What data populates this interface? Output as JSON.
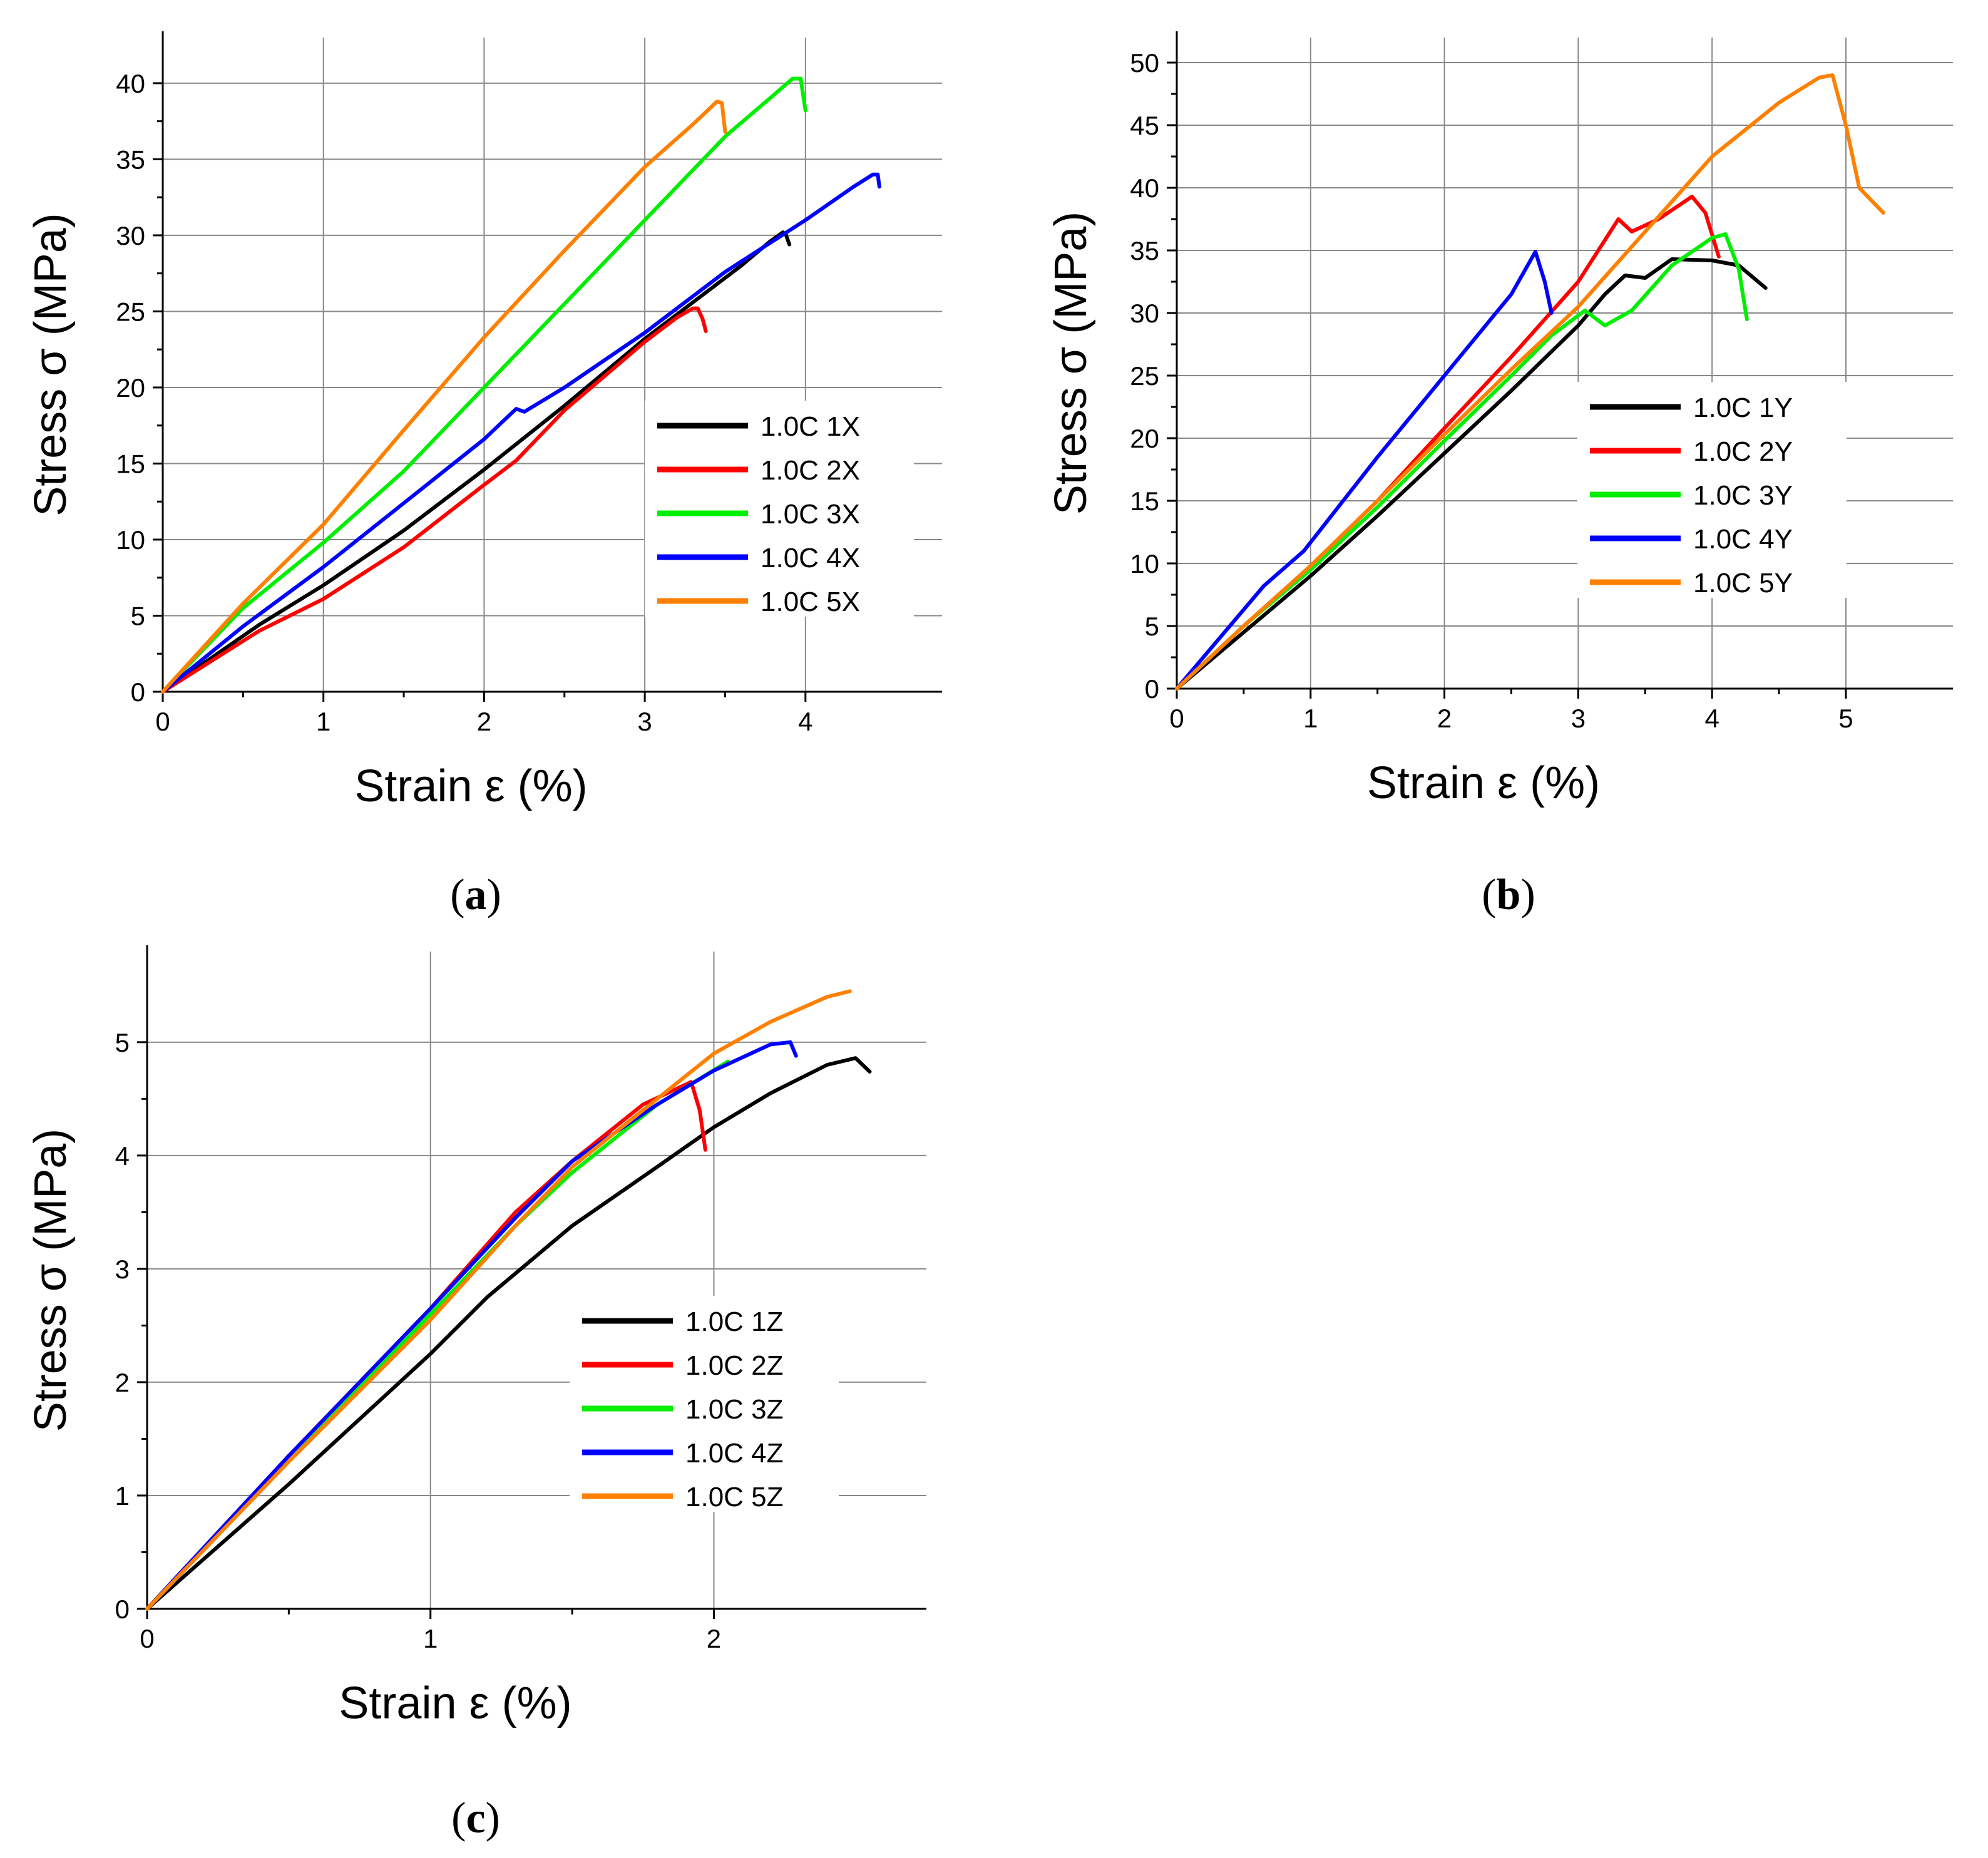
{
  "chart_data": [
    {
      "type": "line",
      "panel_label": "a",
      "xlabel": "Strain ε (%)",
      "ylabel": "Stress σ (MPa)",
      "xlim": [
        0,
        4.85
      ],
      "ylim": [
        0,
        43
      ],
      "xticks": [
        0,
        1,
        2,
        3,
        4
      ],
      "yticks": [
        0,
        5,
        10,
        15,
        20,
        25,
        30,
        35,
        40
      ],
      "grid": true,
      "legend_position": "bottom-right",
      "series": [
        {
          "name": "1.0C 1X",
          "color": "#000000",
          "points": [
            [
              0,
              0
            ],
            [
              0.3,
              2.2
            ],
            [
              0.6,
              4.4
            ],
            [
              1.0,
              7.0
            ],
            [
              1.5,
              10.6
            ],
            [
              2.0,
              14.6
            ],
            [
              2.5,
              18.8
            ],
            [
              3.0,
              23.2
            ],
            [
              3.3,
              25.6
            ],
            [
              3.6,
              28.0
            ],
            [
              3.78,
              29.6
            ],
            [
              3.86,
              30.2
            ],
            [
              3.88,
              30.0
            ],
            [
              3.9,
              29.4
            ]
          ]
        },
        {
          "name": "1.0C 2X",
          "color": "#ff0000",
          "points": [
            [
              0,
              0
            ],
            [
              0.3,
              2.0
            ],
            [
              0.6,
              4.0
            ],
            [
              1.0,
              6.1
            ],
            [
              1.5,
              9.5
            ],
            [
              2.0,
              13.6
            ],
            [
              2.2,
              15.2
            ],
            [
              2.5,
              18.5
            ],
            [
              3.0,
              23.0
            ],
            [
              3.2,
              24.6
            ],
            [
              3.3,
              25.2
            ],
            [
              3.33,
              25.2
            ],
            [
              3.36,
              24.5
            ],
            [
              3.38,
              23.7
            ]
          ]
        },
        {
          "name": "1.0C 3X",
          "color": "#00ee00",
          "points": [
            [
              0,
              0
            ],
            [
              0.5,
              5.5
            ],
            [
              1.0,
              9.8
            ],
            [
              1.5,
              14.5
            ],
            [
              2.0,
              20.0
            ],
            [
              2.5,
              25.5
            ],
            [
              3.0,
              31.0
            ],
            [
              3.5,
              36.5
            ],
            [
              3.8,
              39.2
            ],
            [
              3.92,
              40.3
            ],
            [
              3.97,
              40.3
            ],
            [
              4.0,
              38.2
            ]
          ]
        },
        {
          "name": "1.0C 4X",
          "color": "#0000ff",
          "points": [
            [
              0,
              0
            ],
            [
              0.5,
              4.3
            ],
            [
              1.0,
              8.2
            ],
            [
              1.5,
              12.4
            ],
            [
              2.0,
              16.6
            ],
            [
              2.2,
              18.6
            ],
            [
              2.25,
              18.4
            ],
            [
              2.5,
              20.0
            ],
            [
              3.0,
              23.6
            ],
            [
              3.5,
              27.6
            ],
            [
              4.0,
              31.0
            ],
            [
              4.3,
              33.2
            ],
            [
              4.42,
              34.0
            ],
            [
              4.45,
              34.0
            ],
            [
              4.46,
              33.2
            ]
          ]
        },
        {
          "name": "1.0C 5X",
          "color": "#ff8000",
          "points": [
            [
              0,
              0
            ],
            [
              0.5,
              5.8
            ],
            [
              1.0,
              11.0
            ],
            [
              1.5,
              17.2
            ],
            [
              2.0,
              23.3
            ],
            [
              2.5,
              29.0
            ],
            [
              3.0,
              34.5
            ],
            [
              3.3,
              37.3
            ],
            [
              3.45,
              38.8
            ],
            [
              3.48,
              38.7
            ],
            [
              3.5,
              36.8
            ]
          ]
        }
      ],
      "legend": [
        "1.0C 1X",
        "1.0C 2X",
        "1.0C 3X",
        "1.0C 4X",
        "1.0C 5X"
      ]
    },
    {
      "type": "line",
      "panel_label": "b",
      "xlabel": "Strain ε (%)",
      "ylabel": "Stress σ (MPa)",
      "xlim": [
        0,
        5.8
      ],
      "ylim": [
        0,
        52
      ],
      "xticks": [
        0,
        1,
        2,
        3,
        4,
        5
      ],
      "yticks": [
        0,
        5,
        10,
        15,
        20,
        25,
        30,
        35,
        40,
        45,
        50
      ],
      "grid": true,
      "legend_position": "center-right",
      "series": [
        {
          "name": "1.0C 1Y",
          "color": "#000000",
          "points": [
            [
              0,
              0
            ],
            [
              0.5,
              4.5
            ],
            [
              1.0,
              9.0
            ],
            [
              1.5,
              13.8
            ],
            [
              2.0,
              18.8
            ],
            [
              2.5,
              23.8
            ],
            [
              3.0,
              29.0
            ],
            [
              3.2,
              31.5
            ],
            [
              3.35,
              33.0
            ],
            [
              3.5,
              32.8
            ],
            [
              3.7,
              34.3
            ],
            [
              4.0,
              34.2
            ],
            [
              4.2,
              33.8
            ],
            [
              4.4,
              32.0
            ]
          ]
        },
        {
          "name": "1.0C 2Y",
          "color": "#ff0000",
          "points": [
            [
              0,
              0
            ],
            [
              0.5,
              5.0
            ],
            [
              1.0,
              9.8
            ],
            [
              1.5,
              15.0
            ],
            [
              2.0,
              20.8
            ],
            [
              2.5,
              26.5
            ],
            [
              3.0,
              32.5
            ],
            [
              3.3,
              37.5
            ],
            [
              3.4,
              36.5
            ],
            [
              3.6,
              37.5
            ],
            [
              3.85,
              39.3
            ],
            [
              3.95,
              38.0
            ],
            [
              4.05,
              34.5
            ]
          ]
        },
        {
          "name": "1.0C 3Y",
          "color": "#00ee00",
          "points": [
            [
              0,
              0
            ],
            [
              0.5,
              5.0
            ],
            [
              1.0,
              9.5
            ],
            [
              1.5,
              14.5
            ],
            [
              2.0,
              19.8
            ],
            [
              2.5,
              25.0
            ],
            [
              2.8,
              28.2
            ],
            [
              3.05,
              30.2
            ],
            [
              3.2,
              29.0
            ],
            [
              3.4,
              30.2
            ],
            [
              3.7,
              33.8
            ],
            [
              4.0,
              36.0
            ],
            [
              4.1,
              36.3
            ],
            [
              4.2,
              33.5
            ],
            [
              4.26,
              29.5
            ]
          ]
        },
        {
          "name": "1.0C 4Y",
          "color": "#0000ff",
          "points": [
            [
              0,
              0
            ],
            [
              0.65,
              8.2
            ],
            [
              0.95,
              11.0
            ],
            [
              1.5,
              18.5
            ],
            [
              2.0,
              25.0
            ],
            [
              2.5,
              31.5
            ],
            [
              2.68,
              34.9
            ],
            [
              2.75,
              32.5
            ],
            [
              2.8,
              30.0
            ]
          ]
        },
        {
          "name": "1.0C 5Y",
          "color": "#ff8000",
          "points": [
            [
              0,
              0
            ],
            [
              0.5,
              5.0
            ],
            [
              1.0,
              9.8
            ],
            [
              1.5,
              15.0
            ],
            [
              2.0,
              20.3
            ],
            [
              2.5,
              25.5
            ],
            [
              3.0,
              30.5
            ],
            [
              3.5,
              36.5
            ],
            [
              4.0,
              42.5
            ],
            [
              4.5,
              46.8
            ],
            [
              4.8,
              48.8
            ],
            [
              4.9,
              49.0
            ],
            [
              5.0,
              45.0
            ],
            [
              5.1,
              40.0
            ],
            [
              5.28,
              38.0
            ]
          ]
        }
      ],
      "legend": [
        "1.0C 1Y",
        "1.0C 2Y",
        "1.0C 3Y",
        "1.0C 4Y",
        "1.0C 5Y"
      ]
    },
    {
      "type": "line",
      "panel_label": "c",
      "xlabel": "Strain ε (%)",
      "ylabel": "Stress σ (MPa)",
      "xlim": [
        0,
        2.75
      ],
      "ylim": [
        0,
        5.8
      ],
      "xticks": [
        0,
        1,
        2
      ],
      "yticks": [
        0,
        1,
        2,
        3,
        4,
        5
      ],
      "grid": true,
      "legend_position": "bottom-right",
      "series": [
        {
          "name": "1.0C 1Z",
          "color": "#000000",
          "points": [
            [
              0,
              0
            ],
            [
              0.5,
              1.1
            ],
            [
              1.0,
              2.25
            ],
            [
              1.2,
              2.75
            ],
            [
              1.5,
              3.38
            ],
            [
              1.8,
              3.9
            ],
            [
              2.0,
              4.25
            ],
            [
              2.2,
              4.55
            ],
            [
              2.4,
              4.8
            ],
            [
              2.5,
              4.86
            ],
            [
              2.55,
              4.74
            ]
          ]
        },
        {
          "name": "1.0C 2Z",
          "color": "#ff0000",
          "points": [
            [
              0,
              0
            ],
            [
              0.5,
              1.35
            ],
            [
              1.0,
              2.65
            ],
            [
              1.3,
              3.5
            ],
            [
              1.5,
              3.95
            ],
            [
              1.75,
              4.45
            ],
            [
              1.92,
              4.65
            ],
            [
              1.95,
              4.4
            ],
            [
              1.97,
              4.05
            ]
          ]
        },
        {
          "name": "1.0C 3Z",
          "color": "#00ee00",
          "points": [
            [
              0,
              0
            ],
            [
              0.5,
              1.3
            ],
            [
              1.0,
              2.6
            ],
            [
              1.3,
              3.38
            ],
            [
              1.5,
              3.85
            ],
            [
              1.8,
              4.45
            ],
            [
              2.05,
              4.83
            ]
          ]
        },
        {
          "name": "1.0C 4Z",
          "color": "#0000ff",
          "points": [
            [
              0,
              0
            ],
            [
              0.5,
              1.35
            ],
            [
              1.0,
              2.65
            ],
            [
              1.3,
              3.45
            ],
            [
              1.5,
              3.95
            ],
            [
              1.8,
              4.45
            ],
            [
              2.0,
              4.75
            ],
            [
              2.2,
              4.98
            ],
            [
              2.27,
              5.0
            ],
            [
              2.29,
              4.88
            ]
          ]
        },
        {
          "name": "1.0C 5Z",
          "color": "#ff8000",
          "points": [
            [
              0,
              0
            ],
            [
              0.5,
              1.3
            ],
            [
              1.0,
              2.55
            ],
            [
              1.3,
              3.38
            ],
            [
              1.5,
              3.9
            ],
            [
              1.8,
              4.5
            ],
            [
              2.0,
              4.9
            ],
            [
              2.2,
              5.18
            ],
            [
              2.4,
              5.4
            ],
            [
              2.48,
              5.45
            ]
          ]
        }
      ],
      "legend": [
        "1.0C 1Z",
        "1.0C 2Z",
        "1.0C 3Z",
        "1.0C 4Z",
        "1.0C 5Z"
      ]
    }
  ],
  "captions": [
    "a",
    "b",
    "c"
  ]
}
